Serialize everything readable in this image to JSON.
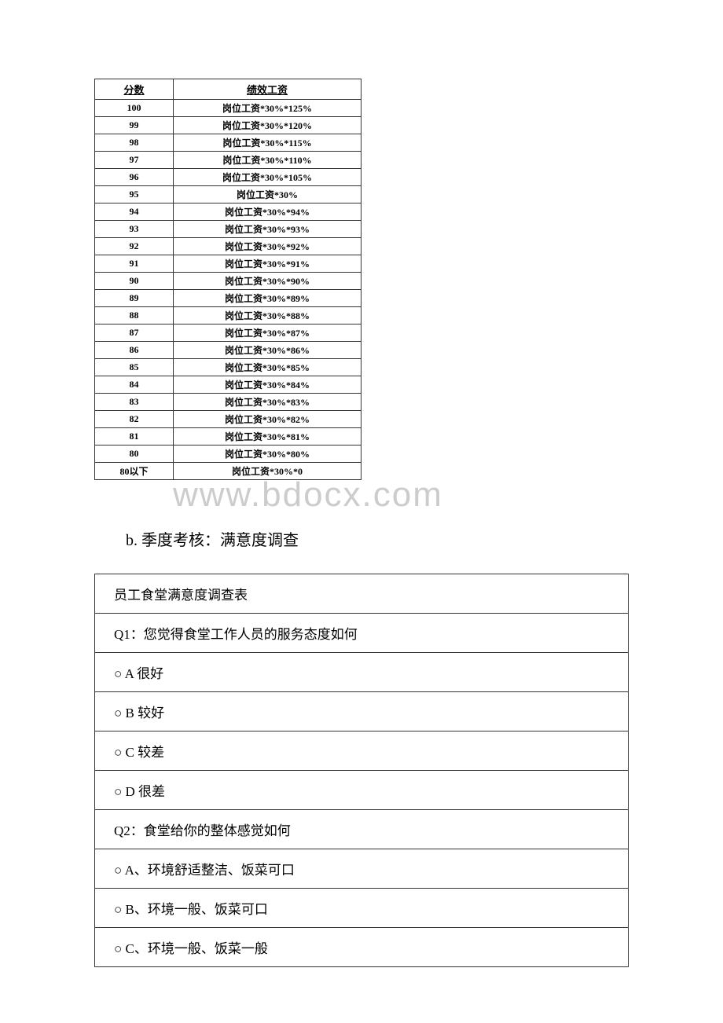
{
  "watermark": "www.bdocx.com",
  "score_table": {
    "headers": [
      "分数",
      "绩效工资"
    ],
    "rows": [
      [
        "100",
        "岗位工资*30%*125%"
      ],
      [
        "99",
        "岗位工资*30%*120%"
      ],
      [
        "98",
        "岗位工资*30%*115%"
      ],
      [
        "97",
        "岗位工资*30%*110%"
      ],
      [
        "96",
        "岗位工资*30%*105%"
      ],
      [
        "95",
        "岗位工资*30%"
      ],
      [
        "94",
        "岗位工资*30%*94%"
      ],
      [
        "93",
        "岗位工资*30%*93%"
      ],
      [
        "92",
        "岗位工资*30%*92%"
      ],
      [
        "91",
        "岗位工资*30%*91%"
      ],
      [
        "90",
        "岗位工资*30%*90%"
      ],
      [
        "89",
        "岗位工资*30%*89%"
      ],
      [
        "88",
        "岗位工资*30%*88%"
      ],
      [
        "87",
        "岗位工资*30%*87%"
      ],
      [
        "86",
        "岗位工资*30%*86%"
      ],
      [
        "85",
        "岗位工资*30%*85%"
      ],
      [
        "84",
        "岗位工资*30%*84%"
      ],
      [
        "83",
        "岗位工资*30%*83%"
      ],
      [
        "82",
        "岗位工资*30%*82%"
      ],
      [
        "81",
        "岗位工资*30%*81%"
      ],
      [
        "80",
        "岗位工资*30%*80%"
      ],
      [
        "80以下",
        "岗位工资*30%*0"
      ]
    ]
  },
  "section_b": {
    "heading": "b. 季度考核：满意度调查"
  },
  "survey": {
    "title": "员工食堂满意度调查表",
    "q1": {
      "question": "Q1：您觉得食堂工作人员的服务态度如何",
      "options": [
        "○ A 很好",
        "○ B 较好",
        "○ C 较差",
        "○ D 很差"
      ]
    },
    "q2": {
      "question": "Q2：食堂给你的整体感觉如何",
      "options": [
        "○ A、环境舒适整洁、饭菜可口",
        "○ B、环境一般、饭菜可口",
        "○ C、环境一般、饭菜一般"
      ]
    }
  }
}
